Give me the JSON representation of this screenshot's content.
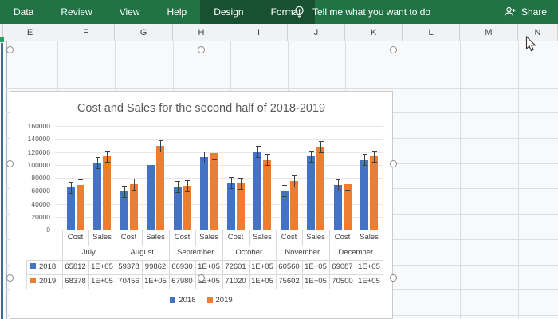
{
  "ribbon": {
    "tabs": [
      {
        "label": "Data",
        "contextual": false
      },
      {
        "label": "Review",
        "contextual": false
      },
      {
        "label": "View",
        "contextual": false
      },
      {
        "label": "Help",
        "contextual": false
      },
      {
        "label": "Design",
        "contextual": true
      },
      {
        "label": "Format",
        "contextual": true
      }
    ],
    "tell_me_label": "Tell me what you want to do",
    "share_label": "Share"
  },
  "sheet": {
    "column_headers": [
      "E",
      "F",
      "G",
      "H",
      "I",
      "J",
      "K",
      "L",
      "M",
      "N"
    ]
  },
  "chart_data": {
    "type": "bar",
    "title": "Cost and Sales for the second half of 2018-2019",
    "ylim": [
      0,
      160000
    ],
    "y_ticks": [
      "160000",
      "140000",
      "120000",
      "100000",
      "80000",
      "60000",
      "40000",
      "20000",
      "0"
    ],
    "grid": true,
    "legend_position": "bottom",
    "x_axis": {
      "cell_labels": [
        "Cost",
        "Sales",
        "Cost",
        "Sales",
        "Cost",
        "Sales",
        "Cost",
        "Sales",
        "Cost",
        "Sales",
        "Cost",
        "Sales"
      ],
      "months": [
        "July",
        "August",
        "September",
        "October",
        "November",
        "December"
      ]
    },
    "error_bar_value": 8500,
    "series": [
      {
        "name": "2018",
        "color": "#4472C4",
        "values": [
          65812,
          103000,
          59378,
          99862,
          66930,
          112000,
          72601,
          120000,
          60560,
          113000,
          69087,
          108000
        ],
        "display": [
          "65812",
          "1E+05",
          "59378",
          "99862",
          "66930",
          "1E+05",
          "72601",
          "1E+05",
          "60560",
          "1E+05",
          "69087",
          "1E+05"
        ]
      },
      {
        "name": "2019",
        "color": "#ED7D31",
        "values": [
          68378,
          113000,
          70456,
          129000,
          67980,
          118000,
          71020,
          108000,
          75602,
          128000,
          70500,
          113000
        ],
        "display": [
          "68378",
          "1E+05",
          "70456",
          "1E+05",
          "67980",
          "1E+05",
          "71020",
          "1E+05",
          "75602",
          "1E+05",
          "70500",
          "1E+05"
        ]
      }
    ],
    "legend": [
      "2018",
      "2019"
    ]
  }
}
